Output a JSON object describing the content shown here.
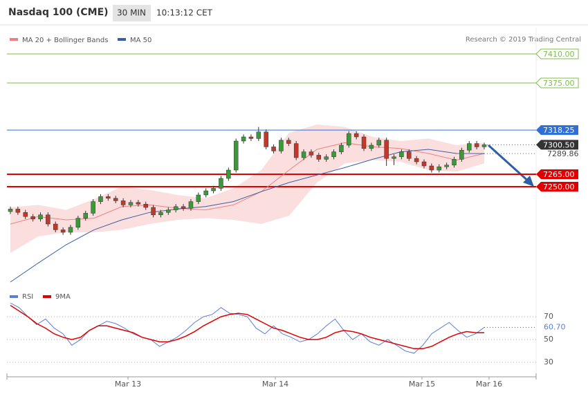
{
  "chart_data": {
    "type": "candlestick",
    "title": "Nasdaq 100 (CME)",
    "interval": "30 MIN",
    "time": "10:13:12 CET",
    "credit": "Research © 2019 Trading Central",
    "ylim": [
      7130,
      7440
    ],
    "candles": {
      "up_color": "#3a9a3a",
      "down_color": "#c0392b",
      "open": [
        7220,
        7223,
        7219,
        7214,
        7211,
        7216,
        7205,
        7198,
        7195,
        7201,
        7212,
        7218,
        7232,
        7238,
        7236,
        7233,
        7228,
        7231,
        7229,
        7225,
        7216,
        7219,
        7222,
        7226,
        7224,
        7232,
        7240,
        7245,
        7248,
        7260,
        7270,
        7305,
        7310,
        7308,
        7316,
        7298,
        7293,
        7306,
        7302,
        7285,
        7292,
        7288,
        7283,
        7286,
        7292,
        7300,
        7314,
        7310,
        7296,
        7300,
        7306,
        7284,
        7286,
        7292,
        7284,
        7280,
        7275,
        7270,
        7274,
        7276,
        7283,
        7294,
        7302,
        7298
      ],
      "high": [
        7226,
        7226,
        7222,
        7217,
        7219,
        7219,
        7208,
        7201,
        7204,
        7215,
        7221,
        7235,
        7241,
        7241,
        7239,
        7236,
        7234,
        7234,
        7232,
        7228,
        7222,
        7225,
        7229,
        7229,
        7235,
        7243,
        7248,
        7251,
        7263,
        7273,
        7308,
        7313,
        7313,
        7322,
        7319,
        7301,
        7309,
        7309,
        7305,
        7295,
        7295,
        7291,
        7289,
        7295,
        7303,
        7317,
        7317,
        7313,
        7303,
        7309,
        7309,
        7289,
        7295,
        7295,
        7287,
        7283,
        7278,
        7277,
        7279,
        7286,
        7297,
        7305,
        7305,
        7303
      ],
      "low": [
        7217,
        7216,
        7211,
        7208,
        7208,
        7202,
        7195,
        7192,
        7192,
        7198,
        7209,
        7215,
        7229,
        7233,
        7230,
        7225,
        7225,
        7226,
        7222,
        7213,
        7213,
        7216,
        7219,
        7221,
        7221,
        7229,
        7237,
        7242,
        7245,
        7257,
        7267,
        7302,
        7305,
        7305,
        7295,
        7290,
        7290,
        7299,
        7282,
        7282,
        7285,
        7280,
        7280,
        7283,
        7289,
        7297,
        7307,
        7293,
        7293,
        7297,
        7275,
        7276,
        7283,
        7281,
        7277,
        7272,
        7267,
        7267,
        7271,
        7273,
        7280,
        7291,
        7295,
        7295
      ],
      "close": [
        7223,
        7219,
        7214,
        7211,
        7216,
        7205,
        7198,
        7195,
        7201,
        7212,
        7218,
        7232,
        7238,
        7236,
        7233,
        7228,
        7231,
        7229,
        7225,
        7216,
        7219,
        7222,
        7226,
        7224,
        7232,
        7240,
        7245,
        7248,
        7260,
        7270,
        7305,
        7310,
        7308,
        7316,
        7298,
        7293,
        7306,
        7302,
        7285,
        7292,
        7288,
        7283,
        7286,
        7292,
        7300,
        7314,
        7310,
        7296,
        7300,
        7306,
        7284,
        7286,
        7292,
        7284,
        7280,
        7275,
        7270,
        7274,
        7276,
        7283,
        7294,
        7302,
        7298,
        7300.5
      ]
    },
    "series": [
      {
        "name": "MA 20 + Bollinger Bands",
        "color": "#f08080",
        "values": [
          7205,
          7214,
          7210,
          7212,
          7226,
          7228,
          7224,
          7222,
          7228,
          7244,
          7270,
          7295,
          7303,
          7298,
          7296,
          7290,
          7282,
          7290
        ],
        "upper": [
          7225,
          7228,
          7222,
          7235,
          7250,
          7246,
          7240,
          7236,
          7248,
          7270,
          7315,
          7325,
          7322,
          7310,
          7305,
          7308,
          7300,
          7303
        ],
        "lower": [
          7170,
          7190,
          7195,
          7195,
          7198,
          7205,
          7210,
          7212,
          7210,
          7205,
          7215,
          7255,
          7278,
          7282,
          7280,
          7270,
          7268,
          7278
        ]
      },
      {
        "name": "MA 50",
        "color": "#3a5fa0",
        "values": [
          7135,
          7158,
          7180,
          7198,
          7210,
          7219,
          7223,
          7226,
          7232,
          7244,
          7255,
          7264,
          7273,
          7283,
          7292,
          7295,
          7290,
          7289.86
        ]
      }
    ],
    "levels": [
      {
        "value": 7410,
        "label": "7410.00",
        "color": "#7bc043",
        "style": "resistance"
      },
      {
        "value": 7375,
        "label": "7375.00",
        "color": "#7bc043",
        "style": "resistance"
      },
      {
        "value": 7318.25,
        "label": "7318.25",
        "color": "#2f6fd6",
        "style": "pivot"
      },
      {
        "value": 7300.5,
        "label": "7300.50",
        "color": "#333333",
        "style": "last"
      },
      {
        "value": 7289.86,
        "label": "7289.86",
        "color": "#3a5fa0",
        "style": "ma"
      },
      {
        "value": 7265,
        "label": "7265.00",
        "color": "#e00000",
        "style": "support"
      },
      {
        "value": 7250,
        "label": "7250.00",
        "color": "#e00000",
        "style": "support"
      }
    ],
    "x_labels": [
      "Mar 13",
      "Mar 14",
      "Mar 15",
      "Mar 16"
    ],
    "rsi": {
      "ylim": [
        20,
        84
      ],
      "yticks": [
        30,
        50,
        70
      ],
      "series": [
        {
          "name": "RSI",
          "color": "#5b7fd6",
          "values": [
            82,
            78,
            70,
            63,
            68,
            60,
            55,
            45,
            50,
            58,
            62,
            66,
            64,
            60,
            55,
            52,
            50,
            44,
            48,
            52,
            58,
            65,
            70,
            72,
            78,
            73,
            72,
            70,
            60,
            55,
            62,
            55,
            52,
            48,
            50,
            55,
            62,
            68,
            58,
            50,
            55,
            48,
            45,
            50,
            45,
            40,
            38,
            45,
            55,
            60,
            65,
            58,
            52,
            55,
            60.7
          ]
        },
        {
          "name": "9MA",
          "color": "#e00000",
          "values": [
            80,
            75,
            70,
            64,
            60,
            55,
            52,
            50,
            52,
            58,
            62,
            62,
            60,
            58,
            56,
            52,
            50,
            48,
            48,
            50,
            53,
            57,
            62,
            66,
            70,
            72,
            73,
            72,
            68,
            64,
            60,
            58,
            55,
            52,
            50,
            50,
            52,
            56,
            58,
            57,
            55,
            52,
            50,
            48,
            46,
            44,
            42,
            42,
            44,
            48,
            52,
            55,
            57,
            56,
            56
          ]
        }
      ],
      "last": {
        "value": 60.7,
        "label": "60.70"
      }
    }
  }
}
